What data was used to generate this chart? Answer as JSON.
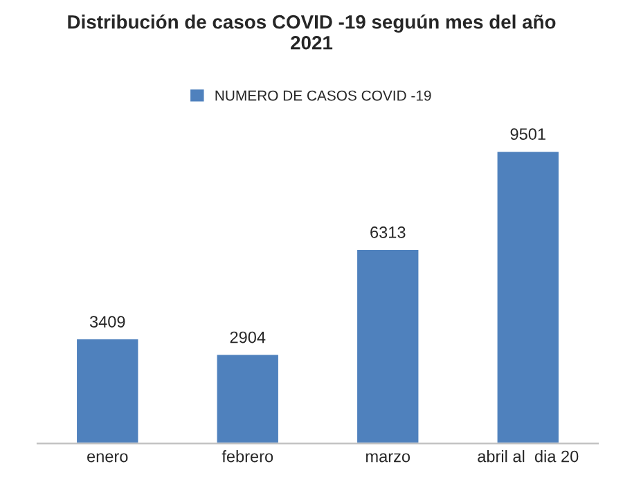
{
  "chart_data": {
    "type": "bar",
    "title": "Distribución de casos COVID -19 seguún mes del año\n2021",
    "categories": [
      "enero",
      "febrero",
      "marzo",
      "abril al  dia 20"
    ],
    "series": [
      {
        "name": "NUMERO DE CASOS COVID -19",
        "color": "#4f81bd",
        "values": [
          3409,
          2904,
          6313,
          9501
        ]
      }
    ],
    "data_labels": true,
    "legend": "top",
    "grid": false
  }
}
